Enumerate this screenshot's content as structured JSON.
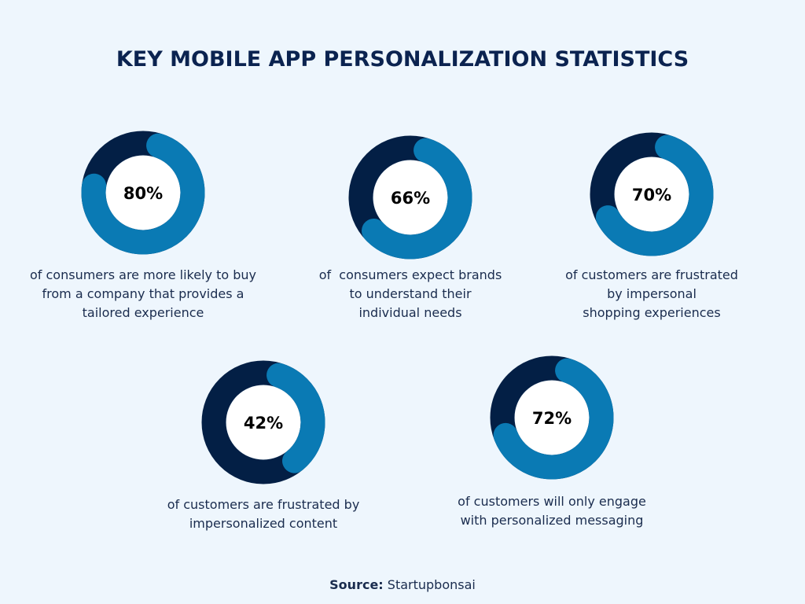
{
  "title": "KEY MOBILE APP PERSONALIZATION STATISTICS",
  "colors": {
    "background": "#eef6fd",
    "filled": "#0a7ab4",
    "track": "#031f45",
    "text": "#0b2350"
  },
  "chart_data": [
    {
      "type": "pie",
      "variant": "donut",
      "value": 80,
      "max": 100,
      "label": "80%",
      "caption": [
        "of consumers are more likely to buy",
        "from a company that provides a",
        "tailored experience"
      ]
    },
    {
      "type": "pie",
      "variant": "donut",
      "value": 66,
      "max": 100,
      "label": "66%",
      "caption": [
        "of  consumers expect brands",
        "to understand their",
        "individual needs"
      ]
    },
    {
      "type": "pie",
      "variant": "donut",
      "value": 70,
      "max": 100,
      "label": "70%",
      "caption": [
        "of customers are frustrated",
        "by impersonal",
        "shopping experiences"
      ]
    },
    {
      "type": "pie",
      "variant": "donut",
      "value": 42,
      "max": 100,
      "label": "42%",
      "caption": [
        "of customers are frustrated by",
        "impersonalized content"
      ]
    },
    {
      "type": "pie",
      "variant": "donut",
      "value": 72,
      "max": 100,
      "label": "72%",
      "caption": [
        "of customers will only engage",
        "with personalized messaging"
      ]
    }
  ],
  "source": {
    "label": "Source:",
    "value": "Startupbonsai"
  }
}
